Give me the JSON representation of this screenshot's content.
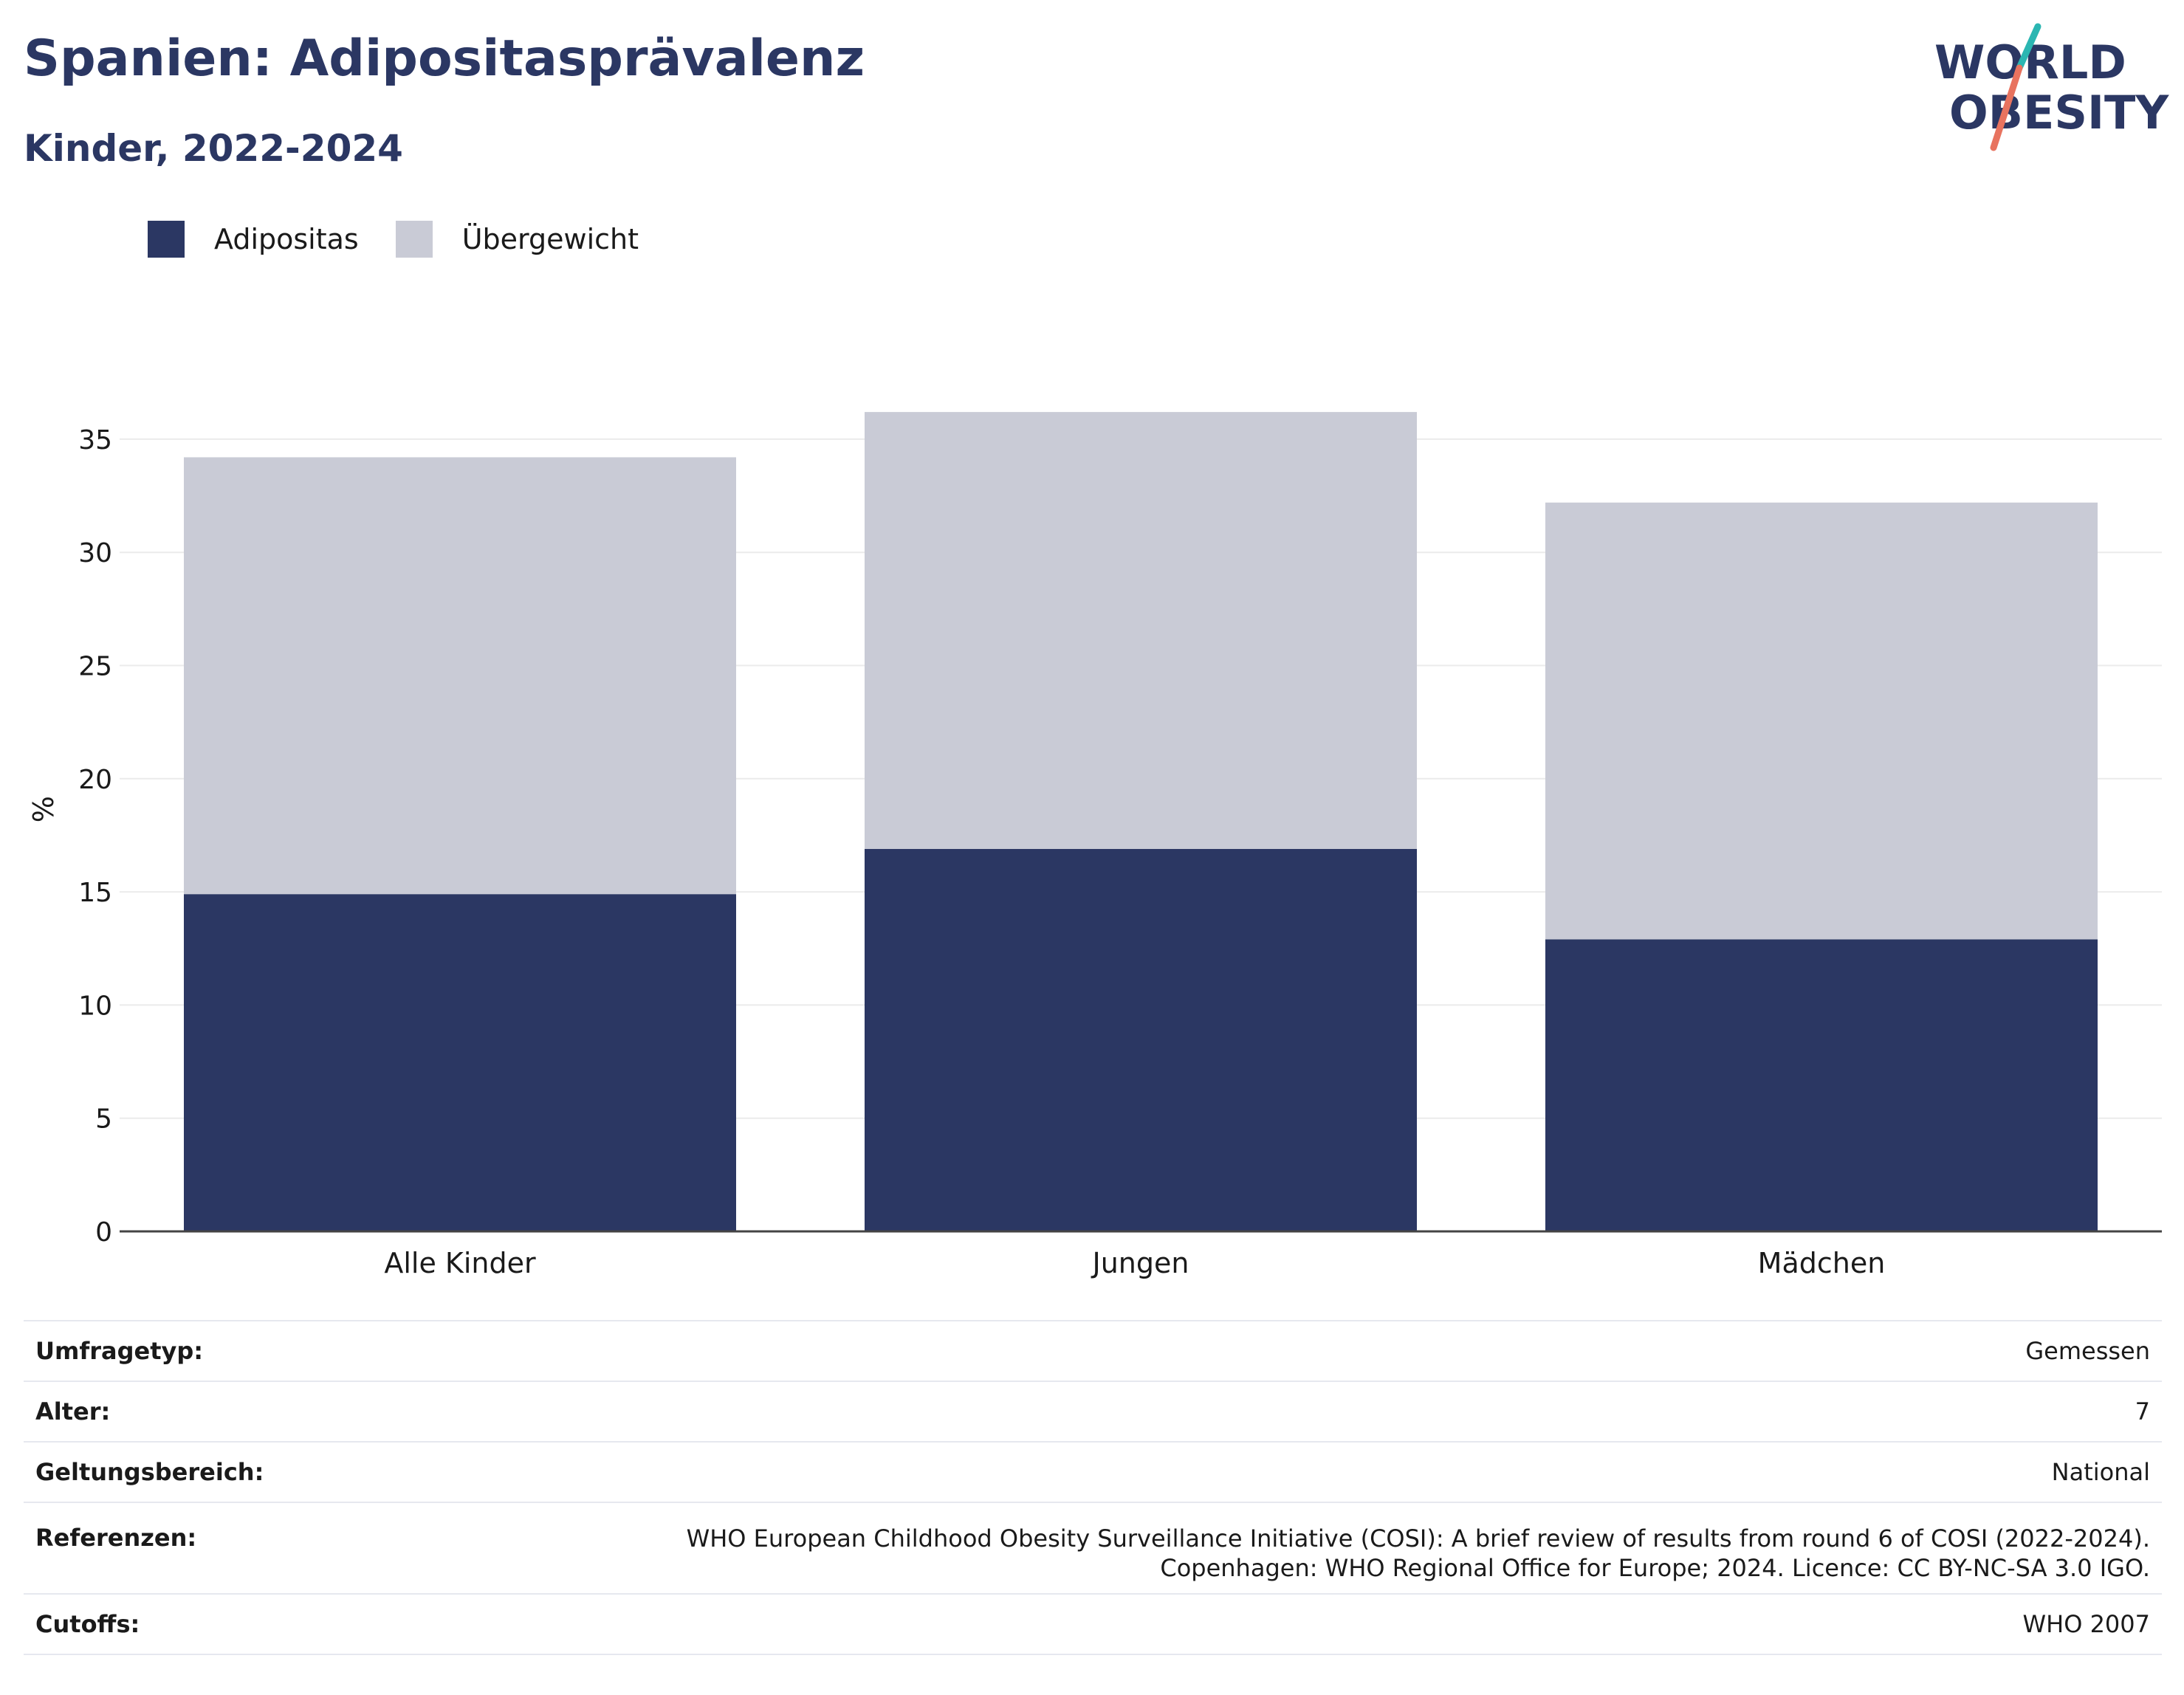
{
  "header": {
    "title": "Spanien: Adipositasprävalenz",
    "subtitle": "Kinder, 2022-2024"
  },
  "logo": {
    "line1": "WORLD",
    "line2": "OBESITY",
    "colors": {
      "text": "#2b3763",
      "teal": "#2bb6b2",
      "coral": "#e8735f"
    }
  },
  "legend": [
    {
      "label": "Adipositas",
      "color": "#2b3763"
    },
    {
      "label": "Übergewicht",
      "color": "#c9cbd6"
    }
  ],
  "chart_data": {
    "type": "bar",
    "stacked": true,
    "categories": [
      "Alle Kinder",
      "Jungen",
      "Mädchen"
    ],
    "series": [
      {
        "name": "Adipositas",
        "values": [
          14.9,
          16.9,
          12.9
        ],
        "color": "#2b3763"
      },
      {
        "name": "Übergewicht",
        "values": [
          19.3,
          19.3,
          19.3
        ],
        "color": "#c9cbd6"
      }
    ],
    "ylabel": "%",
    "ylim": [
      0,
      37.3
    ],
    "yticks": [
      "0",
      "5",
      "10",
      "15",
      "20",
      "25",
      "30",
      "35"
    ],
    "grid": true,
    "legend_position": "top-left"
  },
  "info": [
    {
      "key": "Umfragetyp:",
      "value": "Gemessen"
    },
    {
      "key": "Alter:",
      "value": "7"
    },
    {
      "key": "Geltungsbereich:",
      "value": "National"
    },
    {
      "key": "Referenzen:",
      "value_lines": [
        "WHO European Childhood Obesity Surveillance Initiative (COSI): A brief review of results from round 6 of COSI (2022-2024).",
        "Copenhagen: WHO Regional Office for Europe; 2024. Licence: CC BY-NC-SA 3.0 IGO."
      ]
    },
    {
      "key": "Cutoffs:",
      "value": "WHO 2007"
    }
  ]
}
